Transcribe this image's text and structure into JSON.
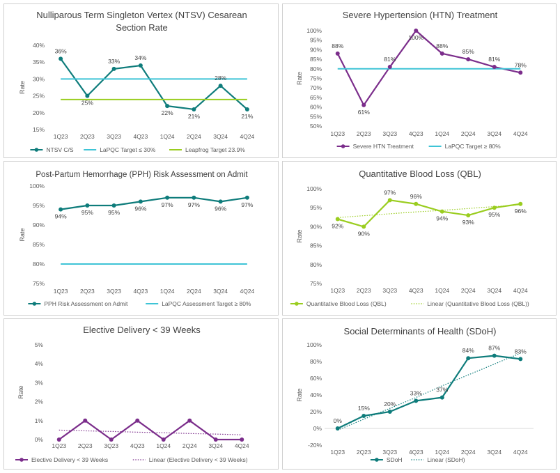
{
  "chart_data": [
    {
      "type": "line",
      "title": "Nulliparous Term Singleton Vertex (NTSV) Cesarean Section Rate",
      "ylabel": "Rate",
      "categories": [
        "1Q23",
        "2Q23",
        "3Q23",
        "4Q23",
        "1Q24",
        "2Q24",
        "3Q24",
        "4Q24"
      ],
      "ylim": [
        15,
        40
      ],
      "ystep": 5,
      "yunit": "%",
      "series": [
        {
          "name": "NTSV C/S",
          "values": [
            36,
            25,
            33,
            34,
            22,
            21,
            28,
            21
          ],
          "color": "#0e7c7b",
          "style": "line-marker",
          "labels": [
            "36%",
            "25%",
            "33%",
            "34%",
            "22%",
            "21%",
            "28%",
            "21%"
          ],
          "label_pos": [
            "above",
            "below",
            "above",
            "above",
            "below",
            "below",
            "above",
            "below"
          ]
        },
        {
          "name": "LaPQC Target ≤ 30%",
          "values": [
            30,
            30,
            30,
            30,
            30,
            30,
            30,
            30
          ],
          "color": "#3ec4d6",
          "style": "line"
        },
        {
          "name": "Leapfrog Target 23.9%",
          "values": [
            23.9,
            23.9,
            23.9,
            23.9,
            23.9,
            23.9,
            23.9,
            23.9
          ],
          "color": "#9acd1f",
          "style": "line"
        }
      ]
    },
    {
      "type": "line",
      "title": "Severe Hypertension (HTN) Treatment",
      "ylabel": "Rate",
      "categories": [
        "1Q23",
        "2Q23",
        "3Q23",
        "4Q23",
        "1Q24",
        "2Q24",
        "3Q24",
        "4Q24"
      ],
      "ylim": [
        50,
        100
      ],
      "ystep": 5,
      "yunit": "%",
      "series": [
        {
          "name": "Severe HTN Treatment",
          "values": [
            88,
            61,
            81,
            100,
            88,
            85,
            81,
            78
          ],
          "color": "#7b2d8b",
          "style": "line-marker",
          "labels": [
            "88%",
            "61%",
            "81%",
            "100%",
            "88%",
            "85%",
            "81%",
            "78%"
          ],
          "label_pos": [
            "above",
            "below",
            "above",
            "below",
            "above",
            "above",
            "above",
            "above"
          ]
        },
        {
          "name": "LaPQC Target ≥ 80%",
          "values": [
            80,
            80,
            80,
            80,
            80,
            80,
            80,
            80
          ],
          "color": "#3ec4d6",
          "style": "line"
        }
      ]
    },
    {
      "type": "line",
      "title": "Post-Partum Hemorrhage (PPH) Risk Assessment on Admit",
      "ylabel": "Rate",
      "categories": [
        "1Q23",
        "2Q23",
        "3Q23",
        "4Q23",
        "1Q24",
        "2Q24",
        "3Q24",
        "4Q24"
      ],
      "ylim": [
        75,
        100
      ],
      "ystep": 5,
      "yunit": "%",
      "series": [
        {
          "name": "PPH Risk Assessment on Admit",
          "values": [
            94,
            95,
            95,
            96,
            97,
            97,
            96,
            97
          ],
          "color": "#0e7c7b",
          "style": "line-marker",
          "labels": [
            "94%",
            "95%",
            "95%",
            "96%",
            "97%",
            "97%",
            "96%",
            "97%"
          ],
          "label_pos": [
            "below",
            "below",
            "below",
            "below",
            "below",
            "below",
            "below",
            "below"
          ]
        },
        {
          "name": "LaPQC Assessment Target ≥ 80%",
          "values": [
            80,
            80,
            80,
            80,
            80,
            80,
            80,
            80
          ],
          "color": "#3ec4d6",
          "style": "line"
        }
      ]
    },
    {
      "type": "line",
      "title": "Quantitative Blood Loss (QBL)",
      "ylabel": "Rate",
      "categories": [
        "1Q23",
        "2Q23",
        "3Q23",
        "4Q23",
        "1Q24",
        "2Q24",
        "3Q24",
        "4Q24"
      ],
      "ylim": [
        75,
        100
      ],
      "ystep": 5,
      "yunit": "%",
      "series": [
        {
          "name": "Quantitative Blood Loss (QBL)",
          "values": [
            92,
            90,
            97,
            96,
            94,
            93,
            95,
            96
          ],
          "color": "#9acd1f",
          "style": "line-marker",
          "labels": [
            "92%",
            "90%",
            "97%",
            "96%",
            "94%",
            "93%",
            "95%",
            "96%"
          ],
          "label_pos": [
            "below",
            "below",
            "above",
            "above",
            "below",
            "below",
            "below",
            "below"
          ]
        },
        {
          "name": "Linear (Quantitative Blood Loss (QBL))",
          "values": [
            92.4,
            92.9,
            93.4,
            93.9,
            94.3,
            94.8,
            95.3,
            95.8
          ],
          "color": "#9acd1f",
          "style": "dotted"
        }
      ]
    },
    {
      "type": "line",
      "title": "Elective Delivery < 39 Weeks",
      "ylabel": "Rate",
      "categories": [
        "1Q23",
        "2Q23",
        "3Q23",
        "4Q23",
        "1Q24",
        "2Q24",
        "3Q24",
        "4Q24"
      ],
      "ylim": [
        0,
        5
      ],
      "ystep": 1,
      "yunit": "%",
      "series": [
        {
          "name": "Elective Delivery < 39 Weeks",
          "values": [
            0,
            1,
            0,
            1,
            0,
            1,
            0,
            0
          ],
          "color": "#7b2d8b",
          "style": "line-marker"
        },
        {
          "name": "Linear (Elective Delivery < 39 Weeks)",
          "values": [
            0.5,
            0.46,
            0.43,
            0.39,
            0.36,
            0.32,
            0.29,
            0.25
          ],
          "color": "#7b2d8b",
          "style": "dotted"
        }
      ]
    },
    {
      "type": "line",
      "title": "Social Determinants of Health (SDoH)",
      "ylabel": "Rate",
      "categories": [
        "1Q23",
        "2Q23",
        "3Q23",
        "4Q23",
        "1Q24",
        "2Q24",
        "3Q24",
        "4Q24"
      ],
      "ylim": [
        -20,
        100
      ],
      "ystep": 20,
      "yunit": "%",
      "series": [
        {
          "name": "SDoH",
          "values": [
            0,
            15,
            20,
            33,
            37,
            84,
            87,
            83
          ],
          "color": "#0e7c7b",
          "style": "line-marker",
          "labels": [
            "0%",
            "15%",
            "20%",
            "33%",
            "37%",
            "84%",
            "87%",
            "83%"
          ],
          "label_pos": [
            "above",
            "above",
            "above",
            "above",
            "above",
            "above",
            "above",
            "above"
          ]
        },
        {
          "name": "Linear (SDoH)",
          "values": [
            -2,
            11,
            24,
            37,
            51,
            64,
            77,
            90
          ],
          "color": "#0e7c7b",
          "style": "dotted"
        }
      ]
    }
  ]
}
